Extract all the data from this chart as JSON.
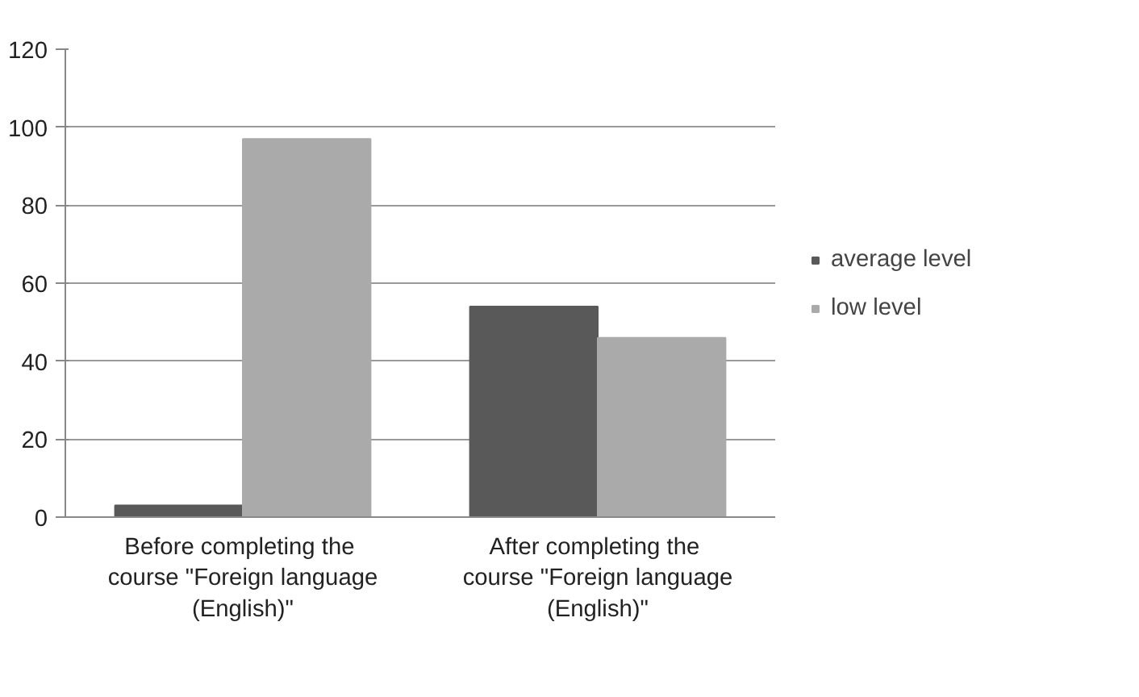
{
  "chart_data": {
    "type": "bar",
    "categories": [
      "Before completing  the course \"Foreign language (English)\"",
      "After completing  the course \"Foreign language (English)\""
    ],
    "series": [
      {
        "name": "average level",
        "color": "#595959",
        "values": [
          3,
          54
        ]
      },
      {
        "name": "low level",
        "color": "#aaaaaa",
        "values": [
          97,
          46
        ]
      }
    ],
    "ylim": [
      0,
      120
    ],
    "yticks": [
      0,
      20,
      40,
      60,
      80,
      100,
      120
    ],
    "grid": "y",
    "legend": "right"
  }
}
